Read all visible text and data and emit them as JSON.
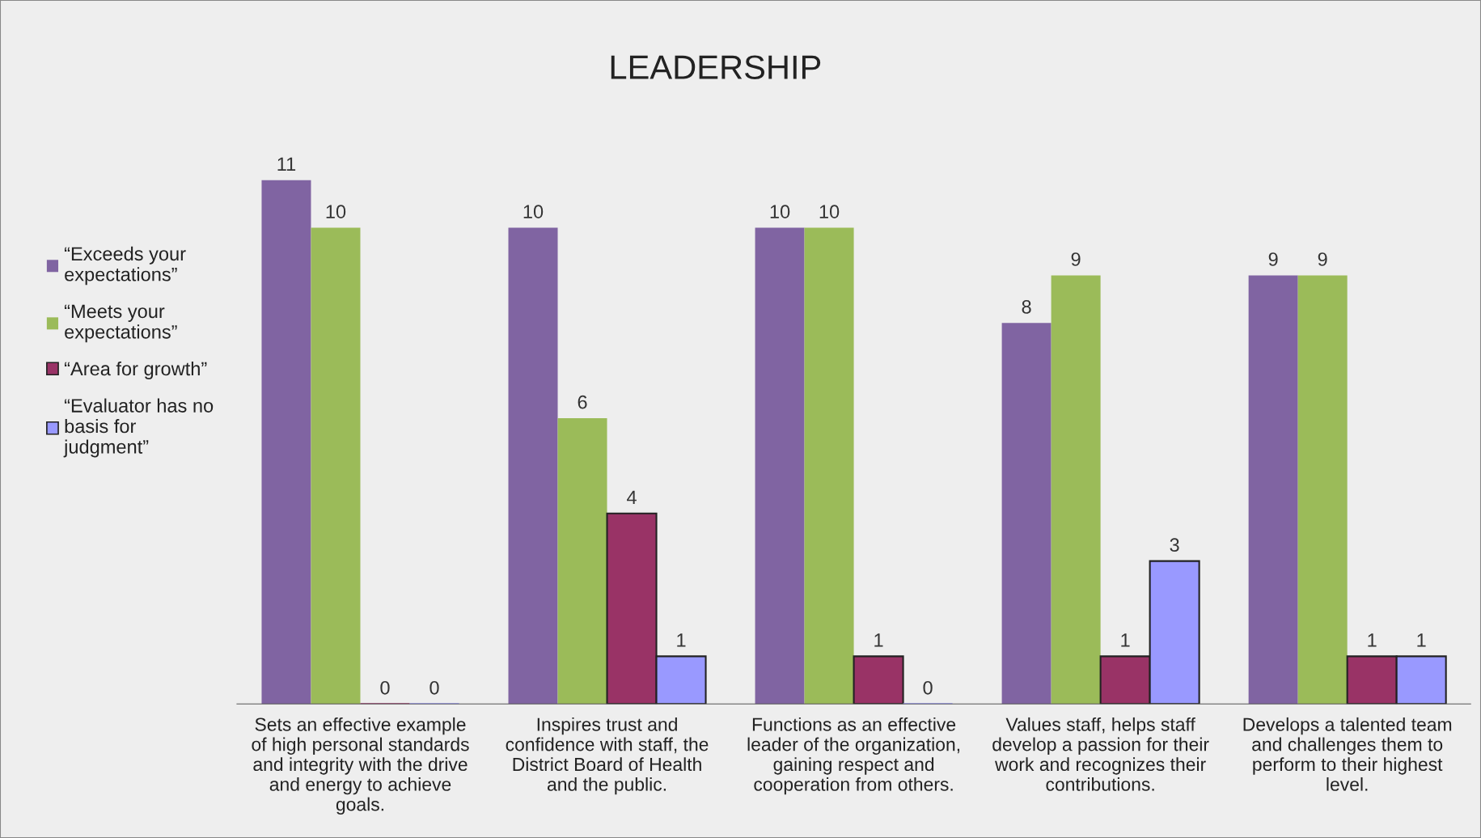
{
  "chart_data": {
    "type": "bar",
    "title": "LEADERSHIP",
    "categories": [
      "Sets an effective example\nof high personal standards\nand integrity with the drive\nand energy to achieve\ngoals.",
      "Inspires trust and\nconfidence with staff, the\nDistrict Board of Health\nand the public.",
      "Functions as an effective\nleader of the organization,\ngaining respect and\ncooperation from others.",
      "Values staff, helps staff\ndevelop a passion for their\nwork and recognizes their\ncontributions.",
      "Develops a talented team\nand challenges them to\nperform to their highest\nlevel."
    ],
    "series": [
      {
        "name": "“Exceeds your\nexpectations”",
        "color": "#8064a2",
        "values": [
          11,
          10,
          10,
          8,
          9
        ]
      },
      {
        "name": "“Meets your\nexpectations”",
        "color": "#9bbb59",
        "values": [
          10,
          6,
          10,
          9,
          9
        ]
      },
      {
        "name": "“Area for growth”",
        "color": "#993366",
        "values": [
          0,
          4,
          1,
          1,
          1
        ]
      },
      {
        "name": "“Evaluator has no\nbasis for\njudgment”",
        "color": "#9999ff",
        "values": [
          0,
          1,
          0,
          3,
          1
        ]
      }
    ],
    "data_labels": true,
    "legend": "left",
    "grid": false
  }
}
